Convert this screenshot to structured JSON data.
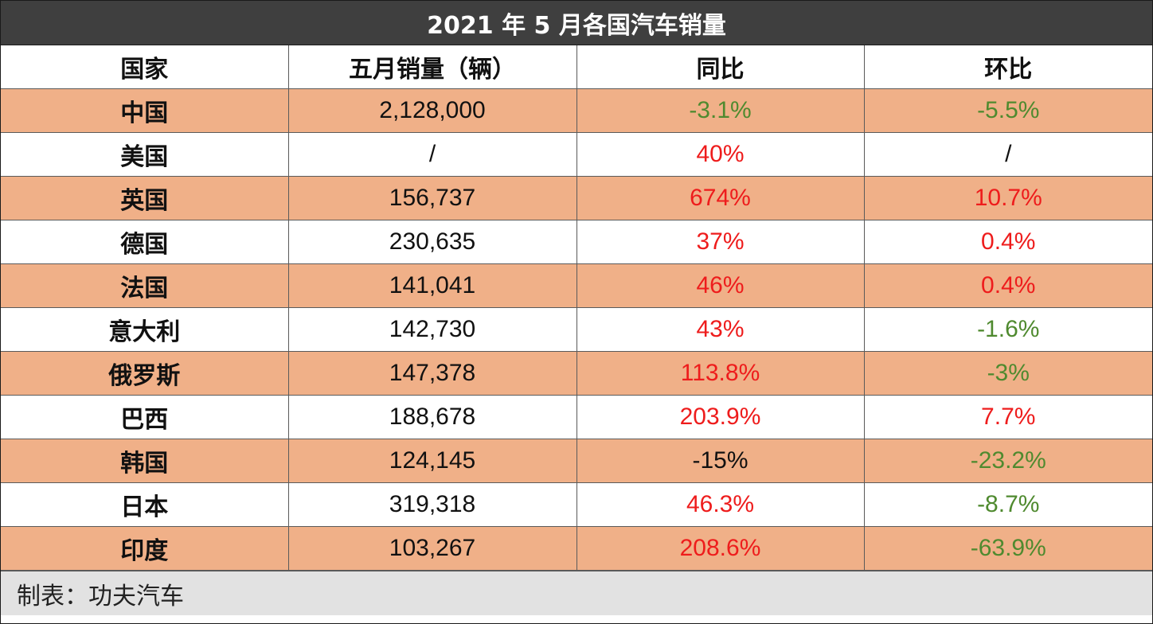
{
  "title": "2021 年 5 月各国汽车销量",
  "headers": [
    "国家",
    "五月销量（辆）",
    "同比",
    "环比"
  ],
  "rows": [
    {
      "country": "中国",
      "sales": "2,128,000",
      "yoy": "-3.1%",
      "yoy_tone": "neg",
      "mom": "-5.5%",
      "mom_tone": "neg"
    },
    {
      "country": "美国",
      "sales": "/",
      "yoy": "40%",
      "yoy_tone": "pos",
      "mom": "/",
      "mom_tone": "neu"
    },
    {
      "country": "英国",
      "sales": "156,737",
      "yoy": "674%",
      "yoy_tone": "pos",
      "mom": "10.7%",
      "mom_tone": "pos"
    },
    {
      "country": "德国",
      "sales": "230,635",
      "yoy": "37%",
      "yoy_tone": "pos",
      "mom": "0.4%",
      "mom_tone": "pos"
    },
    {
      "country": "法国",
      "sales": "141,041",
      "yoy": "46%",
      "yoy_tone": "pos",
      "mom": "0.4%",
      "mom_tone": "pos"
    },
    {
      "country": "意大利",
      "sales": "142,730",
      "yoy": "43%",
      "yoy_tone": "pos",
      "mom": "-1.6%",
      "mom_tone": "neg"
    },
    {
      "country": "俄罗斯",
      "sales": "147,378",
      "yoy": "113.8%",
      "yoy_tone": "pos",
      "mom": "-3%",
      "mom_tone": "neg"
    },
    {
      "country": "巴西",
      "sales": "188,678",
      "yoy": "203.9%",
      "yoy_tone": "pos",
      "mom": "7.7%",
      "mom_tone": "pos"
    },
    {
      "country": "韩国",
      "sales": "124,145",
      "yoy": "-15%",
      "yoy_tone": "neu",
      "mom": "-23.2%",
      "mom_tone": "neg"
    },
    {
      "country": "日本",
      "sales": "319,318",
      "yoy": "46.3%",
      "yoy_tone": "pos",
      "mom": "-8.7%",
      "mom_tone": "neg"
    },
    {
      "country": "印度",
      "sales": "103,267",
      "yoy": "208.6%",
      "yoy_tone": "pos",
      "mom": "-63.9%",
      "mom_tone": "neg"
    }
  ],
  "footer": "制表：功夫汽车",
  "colors": {
    "header_bg": "#3f3f3f",
    "stripe": "#f0b088",
    "positive": "#ee1c1c",
    "negative": "#4f8a2f",
    "footer_bg": "#e2e2e2"
  }
}
